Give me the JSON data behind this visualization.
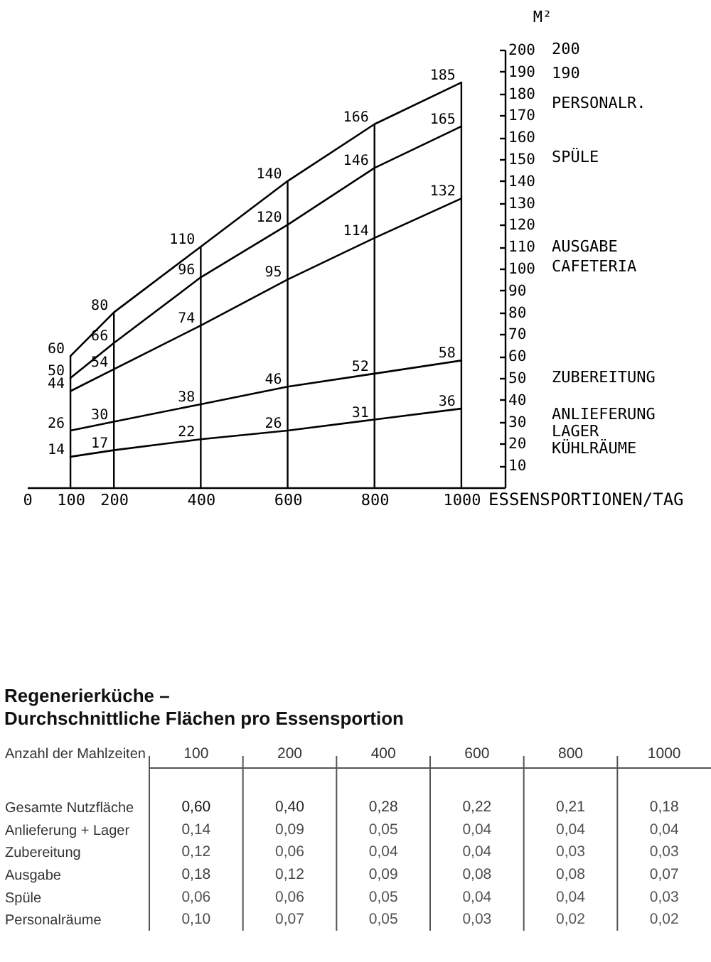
{
  "chart_data": [
    {
      "type": "line",
      "x": [
        100,
        200,
        400,
        600,
        800,
        1000
      ],
      "series": [
        {
          "color": "#000000",
          "values": [
            14,
            17,
            22,
            26,
            31,
            36
          ]
        },
        {
          "color": "#000000",
          "values": [
            26,
            30,
            38,
            46,
            52,
            58
          ]
        },
        {
          "color": "#000000",
          "values": [
            44,
            54,
            74,
            95,
            114,
            132
          ]
        },
        {
          "color": "#000000",
          "values": [
            50,
            66,
            96,
            120,
            146,
            165
          ]
        },
        {
          "color": "#000000",
          "values": [
            60,
            80,
            110,
            140,
            166,
            185
          ]
        }
      ],
      "xlabel": "ESSENSPORTIONEN/TAG",
      "ylabel": "M²",
      "xlim": [
        0,
        1100
      ],
      "xticks": [
        0,
        100,
        200,
        400,
        600,
        800,
        1000
      ],
      "ylim": [
        0,
        200
      ],
      "yticks": [
        10,
        20,
        30,
        40,
        50,
        60,
        70,
        80,
        90,
        100,
        110,
        120,
        130,
        140,
        150,
        160,
        170,
        180,
        190,
        200
      ],
      "data_labels": true,
      "grid": "x",
      "annotations": [
        "200",
        "190",
        "PERSONALR.",
        "SPÜLE",
        "AUSGABE",
        "CAFETERIA",
        "ZUBEREITUNG",
        "ANLIEFERUNG",
        "LAGER",
        "KÜHLRÄUME"
      ]
    },
    {
      "type": "heatmap",
      "title": "Regenerierküche –",
      "subtitle": "Durchschnittliche Flächen pro Essensportion",
      "xlabel": "Anzahl der Mahlzeiten",
      "categories": [
        "100",
        "200",
        "400",
        "600",
        "800",
        "1000"
      ],
      "y_categories": [
        "Gesamte Nutzfläche",
        "Anlieferung + Lager",
        "Zubereitung",
        "Ausgabe",
        "Spüle",
        "Personalräume"
      ],
      "cells": [
        [
          0.6,
          0.4,
          0.28,
          0.22,
          0.21,
          0.18
        ],
        [
          0.14,
          0.09,
          0.05,
          0.04,
          0.04,
          0.04
        ],
        [
          0.12,
          0.06,
          0.04,
          0.04,
          0.03,
          0.03
        ],
        [
          0.18,
          0.12,
          0.09,
          0.08,
          0.08,
          0.07
        ],
        [
          0.06,
          0.06,
          0.05,
          0.04,
          0.04,
          0.03
        ],
        [
          0.1,
          0.07,
          0.05,
          0.03,
          0.02,
          0.02
        ]
      ],
      "cell_labels": [
        [
          "0,60",
          "0,40",
          "0,28",
          "0,22",
          "0,21",
          "0,18"
        ],
        [
          "0,14",
          "0,09",
          "0,05",
          "0,04",
          "0,04",
          "0,04"
        ],
        [
          "0,12",
          "0,06",
          "0,04",
          "0,04",
          "0,03",
          "0,03"
        ],
        [
          "0,18",
          "0,12",
          "0,09",
          "0,08",
          "0,08",
          "0,07"
        ],
        [
          "0,06",
          "0,06",
          "0,05",
          "0,04",
          "0,04",
          "0,03"
        ],
        [
          "0,10",
          "0,07",
          "0,05",
          "0,03",
          "0,02",
          "0,02"
        ]
      ],
      "grid": "x"
    }
  ]
}
